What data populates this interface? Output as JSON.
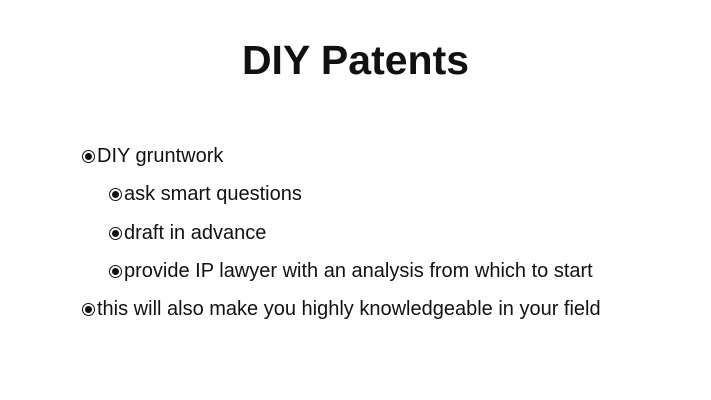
{
  "slide": {
    "title": "DIY Patents",
    "bullets": [
      {
        "text": "DIY gruntwork",
        "level": 1
      },
      {
        "text": "ask smart questions",
        "level": 2
      },
      {
        "text": "draft in advance",
        "level": 2
      },
      {
        "text": "provide IP lawyer with an analysis from which to start",
        "level": 2
      },
      {
        "text": "this will also make you highly knowledgeable in your field",
        "level": 1
      }
    ],
    "bullet_icon": "fisheye-bullet-icon",
    "colors": {
      "background": "#ffffff",
      "text": "#111111"
    }
  }
}
